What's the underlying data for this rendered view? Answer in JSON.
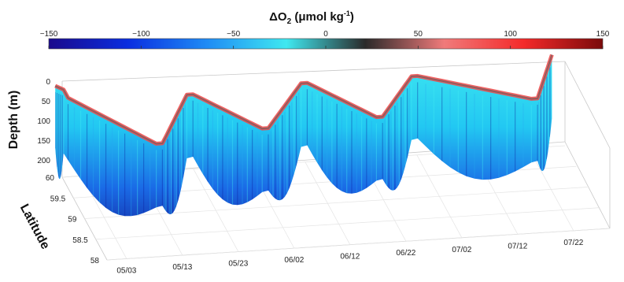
{
  "chart_data": {
    "type": "3d-section",
    "title_main": "ΔO",
    "title_sub": "2",
    "title_unit": " (μmol kg",
    "title_exp": "-1",
    "title_close": ")",
    "colorbar": {
      "ticks": [
        "−150",
        "−100",
        "−50",
        "0",
        "50",
        "100",
        "150"
      ],
      "values": [
        -150,
        -100,
        -50,
        0,
        50,
        100,
        150
      ],
      "range": [
        -150,
        150
      ],
      "colors": [
        "#1a0a8c",
        "#0a2ee0",
        "#1f8cf5",
        "#3fe8f0",
        "#2a2a2a",
        "#f07a7a",
        "#f42a2a",
        "#7a0a0a"
      ]
    },
    "depth_axis": {
      "label": "Depth (m)",
      "ticks": [
        "0",
        "50",
        "100",
        "150",
        "200"
      ],
      "values": [
        0,
        50,
        100,
        150,
        200
      ],
      "range": [
        0,
        200
      ]
    },
    "latitude_axis": {
      "label": "Latitude",
      "ticks": [
        "60",
        "59.5",
        "59",
        "58.5",
        "58"
      ],
      "values": [
        60,
        59.5,
        59,
        58.5,
        58
      ],
      "range": [
        58,
        60
      ]
    },
    "time_axis": {
      "ticks": [
        "05/03",
        "05/13",
        "05/23",
        "06/02",
        "06/12",
        "06/22",
        "07/02",
        "07/12",
        "07/22"
      ]
    },
    "sections": [
      {
        "start": "04/30",
        "end": "05/01",
        "lat_start": 59.9,
        "lat_end": 59.8
      },
      {
        "start": "05/01",
        "end": "05/11",
        "lat_start": 59.6,
        "lat_end": 58.4
      },
      {
        "start": "05/12",
        "end": "05/20",
        "lat_start": 58.4,
        "lat_end": 59.5
      },
      {
        "start": "05/21",
        "end": "05/29",
        "lat_start": 59.5,
        "lat_end": 58.6
      },
      {
        "start": "05/30",
        "end": "06/08",
        "lat_start": 58.6,
        "lat_end": 59.6
      },
      {
        "start": "06/09",
        "end": "06/17",
        "lat_start": 59.6,
        "lat_end": 58.7
      },
      {
        "start": "06/18",
        "end": "06/26",
        "lat_start": 58.7,
        "lat_end": 59.6
      },
      {
        "start": "06/27",
        "end": "07/13",
        "lat_start": 59.6,
        "lat_end": 58.9
      },
      {
        "start": "07/14",
        "end": "07/20",
        "lat_start": 58.9,
        "lat_end": 59.9
      }
    ]
  }
}
